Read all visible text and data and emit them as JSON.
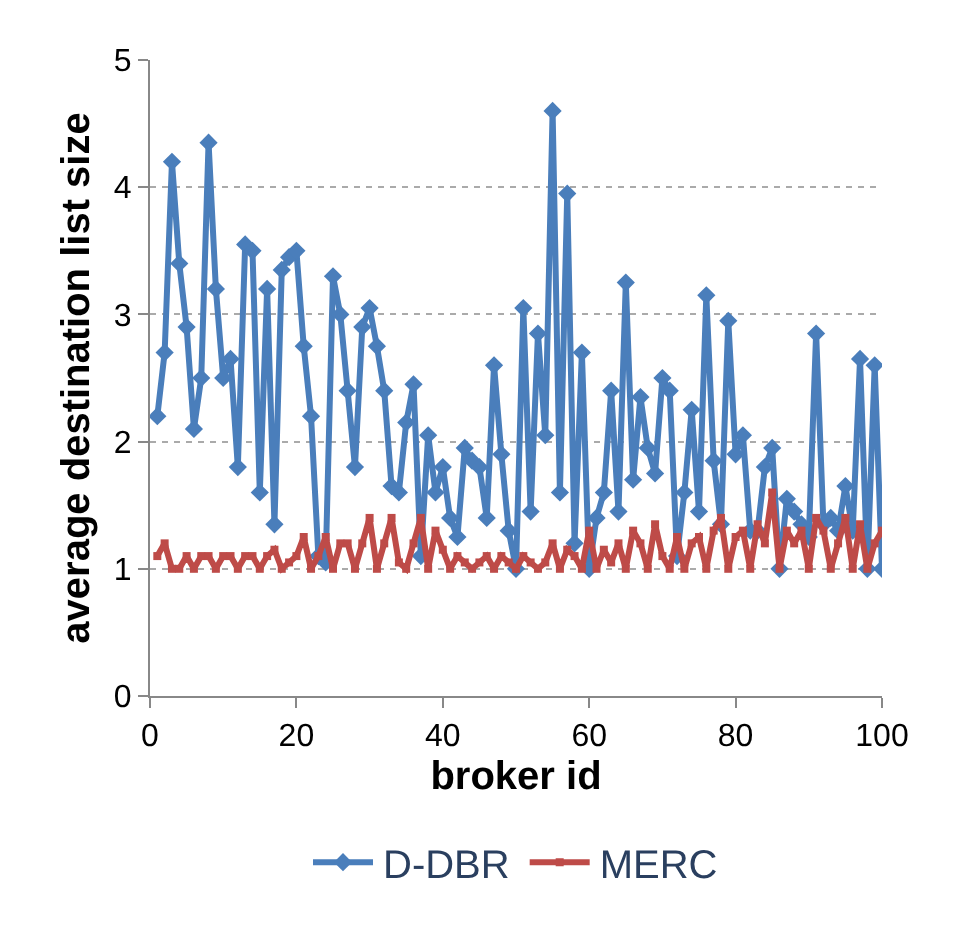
{
  "chart_data": {
    "type": "line",
    "xlabel": "broker id",
    "ylabel": "average destination list size",
    "x": [
      1,
      2,
      3,
      4,
      5,
      6,
      7,
      8,
      9,
      10,
      11,
      12,
      13,
      14,
      15,
      16,
      17,
      18,
      19,
      20,
      21,
      22,
      23,
      24,
      25,
      26,
      27,
      28,
      29,
      30,
      31,
      32,
      33,
      34,
      35,
      36,
      37,
      38,
      39,
      40,
      41,
      42,
      43,
      44,
      45,
      46,
      47,
      48,
      49,
      50,
      51,
      52,
      53,
      54,
      55,
      56,
      57,
      58,
      59,
      60,
      61,
      62,
      63,
      64,
      65,
      66,
      67,
      68,
      69,
      70,
      71,
      72,
      73,
      74,
      75,
      76,
      77,
      78,
      79,
      80,
      81,
      82,
      83,
      84,
      85,
      86,
      87,
      88,
      89,
      90,
      91,
      92,
      93,
      94,
      95,
      96,
      97,
      98,
      99,
      100
    ],
    "series": [
      {
        "name": "D-DBR",
        "color": "#4a7ebb",
        "marker": "diamond",
        "values": [
          2.2,
          2.7,
          4.2,
          3.4,
          2.9,
          2.1,
          2.5,
          4.35,
          3.2,
          2.5,
          2.65,
          1.8,
          3.55,
          3.5,
          1.6,
          3.2,
          1.35,
          3.35,
          3.45,
          3.5,
          2.75,
          2.2,
          1.1,
          1.05,
          3.3,
          3.0,
          2.4,
          1.8,
          2.9,
          3.05,
          2.75,
          2.4,
          1.65,
          1.6,
          2.15,
          2.45,
          1.1,
          2.05,
          1.6,
          1.8,
          1.4,
          1.25,
          1.95,
          1.85,
          1.8,
          1.4,
          2.6,
          1.9,
          1.3,
          1.0,
          3.05,
          1.45,
          2.85,
          2.05,
          4.6,
          1.6,
          3.95,
          1.2,
          2.7,
          1.0,
          1.4,
          1.6,
          2.4,
          1.45,
          3.25,
          1.7,
          2.35,
          1.95,
          1.75,
          2.5,
          2.4,
          1.1,
          1.6,
          2.25,
          1.45,
          3.15,
          1.85,
          1.35,
          2.95,
          1.9,
          2.05,
          1.3,
          1.3,
          1.8,
          1.95,
          1.0,
          1.55,
          1.45,
          1.35,
          1.25,
          2.85,
          1.35,
          1.4,
          1.3,
          1.65,
          1.3,
          2.65,
          1.0,
          2.6,
          1.0
        ]
      },
      {
        "name": "MERC",
        "color": "#be4b48",
        "marker": "square",
        "values": [
          1.1,
          1.2,
          1.0,
          1.0,
          1.1,
          1.0,
          1.1,
          1.1,
          1.0,
          1.1,
          1.1,
          1.0,
          1.1,
          1.1,
          1.0,
          1.1,
          1.15,
          1.0,
          1.05,
          1.1,
          1.25,
          1.0,
          1.1,
          1.25,
          1.0,
          1.2,
          1.2,
          1.0,
          1.2,
          1.4,
          1.0,
          1.2,
          1.4,
          1.05,
          1.0,
          1.2,
          1.4,
          1.0,
          1.3,
          1.15,
          1.0,
          1.1,
          1.05,
          1.0,
          1.05,
          1.1,
          1.0,
          1.1,
          1.05,
          1.0,
          1.1,
          1.05,
          1.0,
          1.05,
          1.2,
          1.0,
          1.15,
          1.1,
          1.0,
          1.3,
          1.0,
          1.15,
          1.05,
          1.2,
          1.0,
          1.3,
          1.2,
          1.0,
          1.35,
          1.1,
          1.0,
          1.25,
          1.0,
          1.2,
          1.25,
          1.0,
          1.3,
          1.4,
          1.0,
          1.25,
          1.3,
          1.0,
          1.35,
          1.2,
          1.6,
          1.0,
          1.3,
          1.2,
          1.3,
          1.0,
          1.4,
          1.3,
          1.0,
          1.2,
          1.4,
          1.0,
          1.35,
          1.0,
          1.2,
          1.3
        ]
      }
    ],
    "xlim": [
      0,
      100
    ],
    "xticks": [
      0,
      20,
      40,
      60,
      80,
      100
    ],
    "ylim": [
      0,
      5
    ],
    "yticks": [
      0,
      1,
      2,
      3,
      4,
      5
    ],
    "grid": "y",
    "legend": "bottom"
  }
}
